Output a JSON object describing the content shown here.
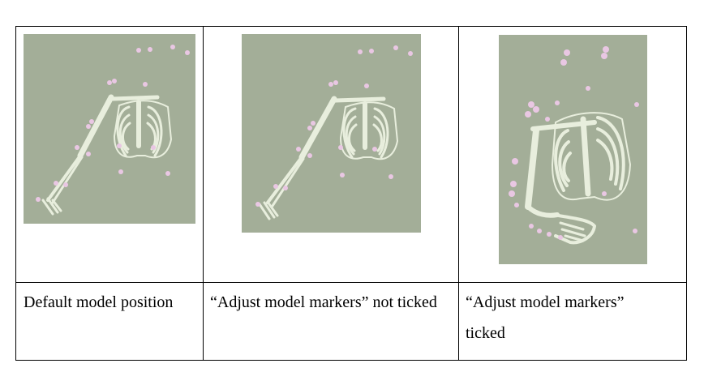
{
  "figure_table": {
    "columns": [
      {
        "caption": "Default model position",
        "image": "skeleton-arm-ribcage-render-default"
      },
      {
        "caption": "“Adjust model markers” not ticked",
        "image": "skeleton-arm-ribcage-render-not-adjusted"
      },
      {
        "caption": "“Adjust model markers” ticked",
        "image": "skeleton-arm-ribcage-render-adjusted"
      }
    ]
  },
  "colors": {
    "background": "#a3ae98",
    "bone": "#e8eedd",
    "bone_shadow": "#b7c0a9",
    "marker": "#e9c7e3"
  }
}
